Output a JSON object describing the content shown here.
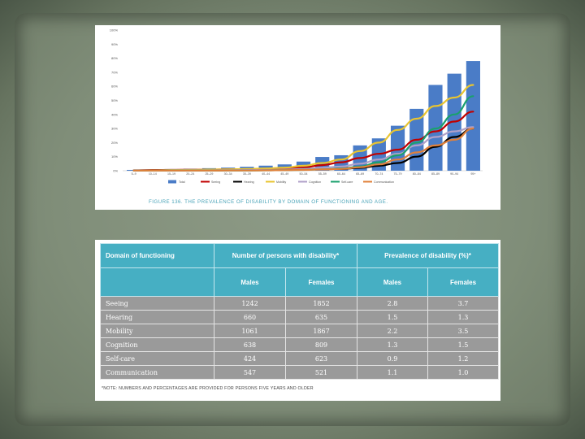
{
  "chart_data": {
    "type": "bar",
    "title": "",
    "xlabel": "",
    "ylabel": "",
    "ylim": [
      0,
      100
    ],
    "y_ticks": [
      "0%",
      "10%",
      "20%",
      "30%",
      "40%",
      "50%",
      "60%",
      "70%",
      "80%",
      "90%",
      "100%"
    ],
    "categories": [
      "5–9",
      "10–14",
      "15–19",
      "20–24",
      "25–29",
      "30–34",
      "35–39",
      "40–44",
      "45–49",
      "50–54",
      "55–59",
      "60–64",
      "65–69",
      "70–74",
      "75–79",
      "80–84",
      "85–89",
      "90–94",
      "95+"
    ],
    "bar_series": {
      "name": "Total",
      "color": "#4a7cc7",
      "values": [
        0.6,
        0.8,
        1.2,
        1.4,
        1.8,
        2.2,
        2.8,
        3.6,
        4.5,
        6.5,
        9.8,
        11,
        18,
        23,
        32,
        44,
        61,
        69,
        78
      ]
    },
    "series": [
      {
        "name": "Seeing",
        "color": "#c00000",
        "values": [
          0.3,
          0.5,
          0.6,
          0.7,
          0.8,
          0.9,
          1.0,
          1.3,
          1.7,
          2.5,
          4.0,
          6.0,
          9.0,
          12,
          15,
          22,
          28,
          35,
          42
        ]
      },
      {
        "name": "Hearing",
        "color": "#000000",
        "values": [
          0.2,
          0.2,
          0.2,
          0.2,
          0.2,
          0.3,
          0.3,
          0.4,
          0.5,
          0.8,
          1.0,
          1.3,
          2.0,
          3.5,
          5.5,
          10,
          17,
          24,
          30
        ]
      },
      {
        "name": "Mobility",
        "color": "#e8c430",
        "values": [
          0.2,
          0.3,
          0.5,
          0.6,
          0.8,
          1.0,
          1.2,
          1.6,
          2.2,
          3.5,
          5.5,
          8.0,
          14,
          20,
          29,
          37,
          46,
          52,
          61
        ]
      },
      {
        "name": "Cognition",
        "color": "#b0a0c8",
        "values": [
          0.2,
          0.2,
          0.3,
          0.3,
          0.3,
          0.4,
          0.5,
          0.6,
          0.8,
          1.2,
          2.0,
          3.0,
          5.0,
          8.0,
          12,
          18,
          24,
          28,
          31
        ]
      },
      {
        "name": "Self-care",
        "color": "#1aa06e",
        "values": [
          0.1,
          0.1,
          0.1,
          0.1,
          0.1,
          0.2,
          0.2,
          0.3,
          0.4,
          0.6,
          1.0,
          1.5,
          3.0,
          6.0,
          11,
          20,
          30,
          40,
          53
        ]
      },
      {
        "name": "Communication",
        "color": "#e0803a",
        "values": [
          0.1,
          0.1,
          0.1,
          0.1,
          0.1,
          0.2,
          0.2,
          0.3,
          0.4,
          0.6,
          0.9,
          1.3,
          2.5,
          4.5,
          8.0,
          13,
          18,
          22,
          30
        ]
      }
    ],
    "legend_position": "bottom",
    "grid": false,
    "caption": "FIGURE 136. THE PREVALENCE OF DISABILITY BY DOMAIN OF FUNCTIONING AND AGE."
  },
  "table": {
    "header": {
      "domain": "Domain of functioning",
      "number": "Number of persons with disability*",
      "prevalence": "Prevalence of disability (%)*",
      "males": "Males",
      "females": "Females"
    },
    "rows": [
      {
        "domain": "Seeing",
        "num_m": "1242",
        "num_f": "1852",
        "prev_m": "2.8",
        "prev_f": "3.7"
      },
      {
        "domain": "Hearing",
        "num_m": "660",
        "num_f": "635",
        "prev_m": "1.5",
        "prev_f": "1.3"
      },
      {
        "domain": "Mobility",
        "num_m": "1061",
        "num_f": "1867",
        "prev_m": "2.2",
        "prev_f": "3.5"
      },
      {
        "domain": "Cognition",
        "num_m": "638",
        "num_f": "809",
        "prev_m": "1.3",
        "prev_f": "1.5"
      },
      {
        "domain": "Self-care",
        "num_m": "424",
        "num_f": "623",
        "prev_m": "0.9",
        "prev_f": "1.2"
      },
      {
        "domain": "Communication",
        "num_m": "547",
        "num_f": "521",
        "prev_m": "1.1",
        "prev_f": "1.0"
      }
    ],
    "note": "*NOTE: NUMBERS AND PERCENTAGES ARE PROVIDED FOR PERSONS FIVE YEARS AND OLDER"
  },
  "colors": {
    "table_header": "#46afc3",
    "table_body": "#9a9a9a",
    "caption": "#4aa3b8",
    "slide_background": "#7d8b77"
  }
}
